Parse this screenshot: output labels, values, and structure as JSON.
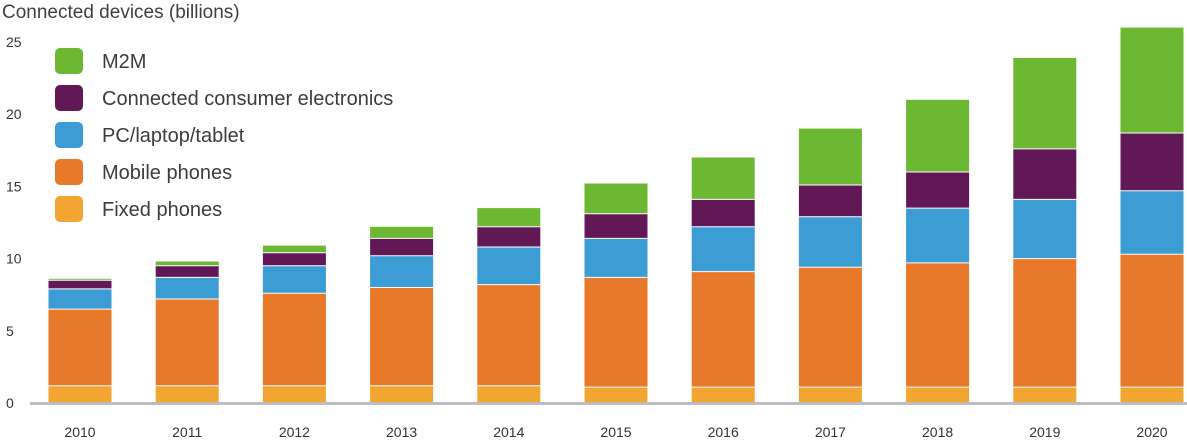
{
  "chart_data": {
    "type": "bar",
    "stacked": true,
    "title": "Connected devices (billions)",
    "xlabel": "",
    "ylabel": "",
    "ylim": [
      0,
      25
    ],
    "y_ticks": [
      0,
      5,
      10,
      15,
      20,
      25
    ],
    "grid": false,
    "legend_position": "top-left",
    "categories": [
      "2010",
      "2011",
      "2012",
      "2013",
      "2014",
      "2015",
      "2016",
      "2017",
      "2018",
      "2019",
      "2020"
    ],
    "series": [
      {
        "name": "Fixed phones",
        "color": "#f2a531",
        "values": [
          1.2,
          1.2,
          1.2,
          1.2,
          1.2,
          1.1,
          1.1,
          1.1,
          1.1,
          1.1,
          1.1
        ]
      },
      {
        "name": "Mobile phones",
        "color": "#e8792b",
        "values": [
          5.3,
          6.0,
          6.4,
          6.8,
          7.0,
          7.6,
          8.0,
          8.3,
          8.6,
          8.9,
          9.2
        ]
      },
      {
        "name": "PC/laptop/tablet",
        "color": "#3b9dd4",
        "values": [
          1.4,
          1.5,
          1.9,
          2.2,
          2.6,
          2.7,
          3.1,
          3.5,
          3.8,
          4.1,
          4.4
        ]
      },
      {
        "name": "Connected consumer electronics",
        "color": "#621856",
        "values": [
          0.6,
          0.8,
          0.9,
          1.2,
          1.4,
          1.7,
          1.9,
          2.2,
          2.5,
          3.5,
          4.0
        ]
      },
      {
        "name": "M2M",
        "color": "#6db832",
        "values": [
          0.1,
          0.3,
          0.5,
          0.8,
          1.3,
          2.1,
          2.9,
          3.9,
          5.0,
          6.3,
          7.3
        ]
      }
    ],
    "legend_order": [
      "M2M",
      "Connected consumer electronics",
      "PC/laptop/tablet",
      "Mobile phones",
      "Fixed phones"
    ],
    "axis_color": "#bdbdbd"
  }
}
